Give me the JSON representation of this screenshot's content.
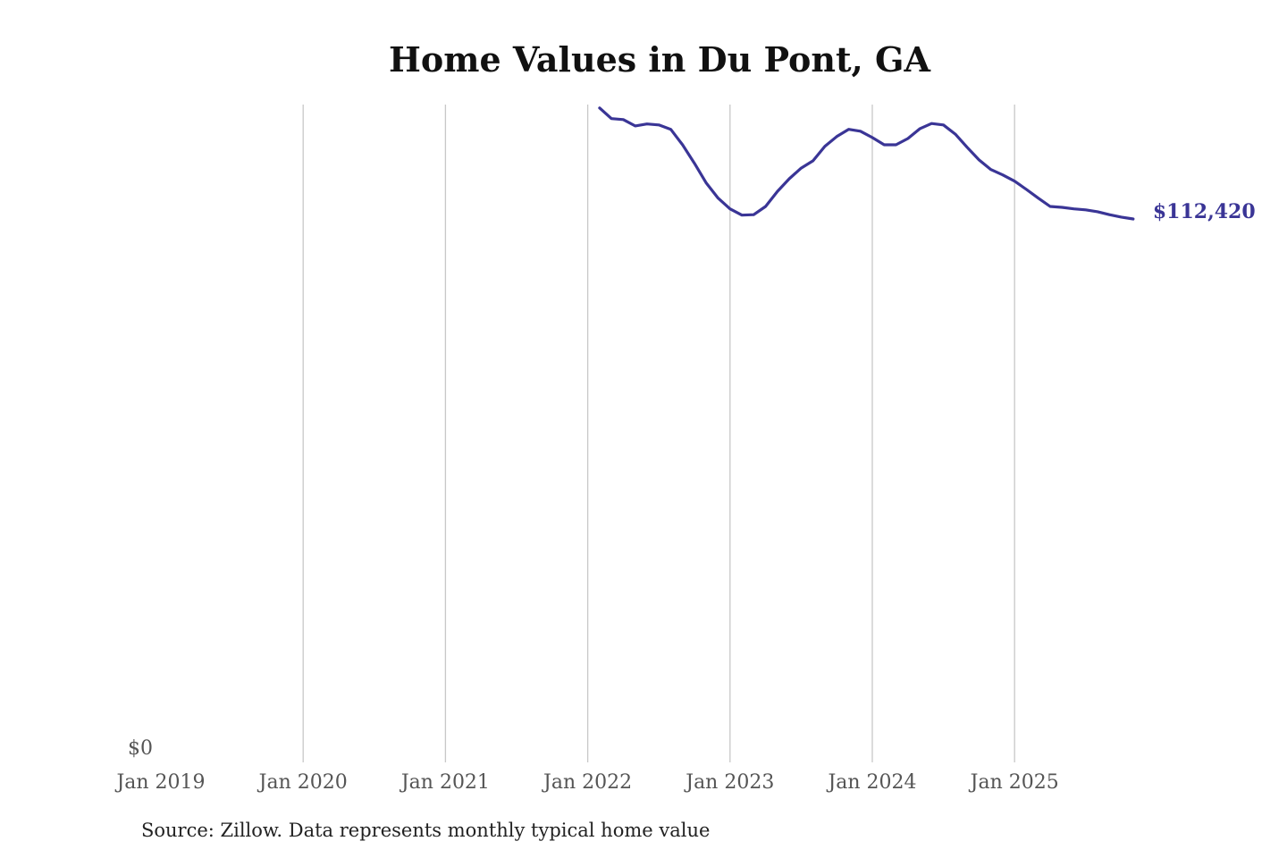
{
  "chart_data": {
    "type": "line",
    "title": "Home Values in Du Pont, GA",
    "source": "Source: Zillow. Data represents monthly typical home value",
    "xlabel": "",
    "ylabel": "",
    "x_ticks": [
      "Jan 2019",
      "Jan 2020",
      "Jan 2021",
      "Jan 2022",
      "Jan 2023",
      "Jan 2024",
      "Jan 2025"
    ],
    "y_ticks": [
      "$0"
    ],
    "ylim": [
      0,
      136000
    ],
    "xlim": [
      "2019-01",
      "2025-11"
    ],
    "grid": "vertical",
    "line_color": "#3a3596",
    "end_label": "$112,420",
    "x": [
      "2022-02",
      "2022-03",
      "2022-04",
      "2022-05",
      "2022-06",
      "2022-07",
      "2022-08",
      "2022-09",
      "2022-10",
      "2022-11",
      "2022-12",
      "2023-01",
      "2023-02",
      "2023-03",
      "2023-04",
      "2023-05",
      "2023-06",
      "2023-07",
      "2023-08",
      "2023-09",
      "2023-10",
      "2023-11",
      "2023-12",
      "2024-01",
      "2024-02",
      "2024-03",
      "2024-04",
      "2024-05",
      "2024-06",
      "2024-07",
      "2024-08",
      "2024-09",
      "2024-10",
      "2024-11",
      "2024-12",
      "2025-01",
      "2025-02",
      "2025-03",
      "2025-04",
      "2025-05",
      "2025-06",
      "2025-07",
      "2025-08",
      "2025-09",
      "2025-10",
      "2025-11"
    ],
    "values": [
      135300,
      133100,
      132900,
      131600,
      132000,
      131800,
      130900,
      127700,
      123900,
      119800,
      116700,
      114500,
      113200,
      113300,
      115000,
      118100,
      120700,
      122900,
      124400,
      127400,
      129400,
      130900,
      130500,
      129200,
      127700,
      127700,
      129000,
      131000,
      132100,
      131800,
      129900,
      127200,
      124600,
      122600,
      121500,
      120200,
      118500,
      116700,
      115000,
      114800,
      114500,
      114300,
      113900,
      113300,
      112800,
      112420
    ]
  }
}
